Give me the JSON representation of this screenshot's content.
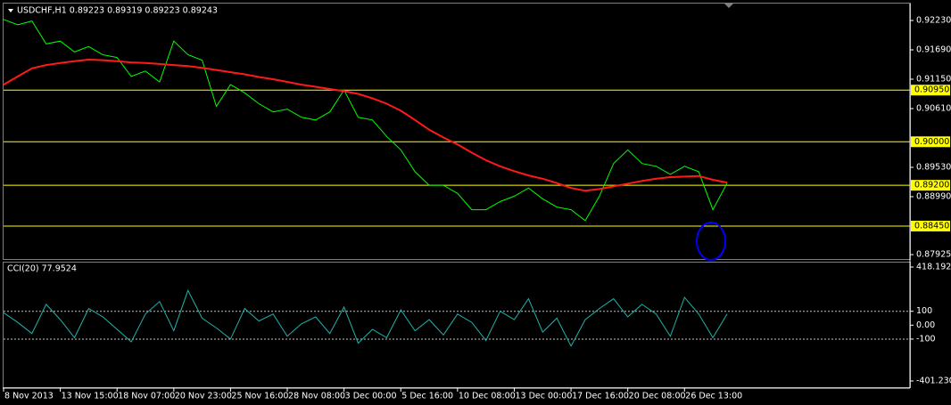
{
  "chart_data": [
    {
      "type": "line",
      "title": "USDCHF,H1  0.89223 0.89319 0.89223 0.89243",
      "categories": [
        "8 Nov 2013",
        null,
        null,
        null,
        "13 Nov 15:00",
        null,
        null,
        null,
        "18 Nov 07:00",
        null,
        null,
        null,
        "20 Nov 23:00",
        null,
        null,
        null,
        "25 Nov 16:00",
        null,
        null,
        null,
        "28 Nov 08:00",
        null,
        null,
        null,
        "3 Dec 00:00",
        null,
        null,
        null,
        "5 Dec 16:00",
        null,
        null,
        null,
        "10 Dec 08:00",
        null,
        null,
        null,
        "13 Dec 00:00",
        null,
        null,
        null,
        "17 Dec 16:00",
        null,
        null,
        null,
        "20 Dec 08:00",
        null,
        null,
        null,
        "26 Dec 13:00",
        null,
        null,
        null
      ],
      "series": [
        {
          "color": "#00ff00",
          "values": [
            0.9225,
            0.9215,
            0.9222,
            0.918,
            0.9185,
            0.9165,
            0.9175,
            0.916,
            0.9155,
            0.912,
            0.913,
            0.911,
            0.9185,
            0.916,
            0.915,
            0.9065,
            0.9105,
            0.909,
            0.907,
            0.9055,
            0.906,
            0.9045,
            0.904,
            0.9055,
            0.9095,
            0.9045,
            0.904,
            0.901,
            0.8985,
            0.8945,
            0.892,
            0.892,
            0.8905,
            0.8875,
            0.8875,
            0.889,
            0.89,
            0.8915,
            0.8895,
            0.888,
            0.8875,
            0.8855,
            0.89,
            0.896,
            0.8985,
            0.896,
            0.8955,
            0.894,
            0.8955,
            0.8945,
            0.8875,
            0.8924
          ]
        },
        {
          "color": "#ff1a1a",
          "values": [
            0.9105,
            0.912,
            0.9135,
            0.9141,
            0.9145,
            0.9148,
            0.9151,
            0.915,
            0.9148,
            0.9146,
            0.9145,
            0.9143,
            0.9141,
            0.9139,
            0.9136,
            0.9132,
            0.9128,
            0.9124,
            0.9119,
            0.9115,
            0.911,
            0.9105,
            0.9101,
            0.9097,
            0.9093,
            0.9088,
            0.908,
            0.907,
            0.9057,
            0.904,
            0.9022,
            0.9008,
            0.8995,
            0.898,
            0.8966,
            0.8955,
            0.8946,
            0.8938,
            0.8932,
            0.8924,
            0.8915,
            0.891,
            0.8913,
            0.8918,
            0.8923,
            0.8928,
            0.8932,
            0.8935,
            0.8936,
            0.8937,
            0.893,
            0.8925
          ]
        }
      ],
      "ylim": [
        0.87844,
        0.92541
      ],
      "yticks": [
        {
          "value": 0.9223,
          "label": "0.92230"
        },
        {
          "value": 0.9169,
          "label": "0.91690"
        },
        {
          "value": 0.9115,
          "label": "0.91150"
        },
        {
          "value": 0.9061,
          "label": "0.90610"
        },
        {
          "value": 0.8953,
          "label": "0.89530"
        },
        {
          "value": 0.8899,
          "label": "0.88990"
        },
        {
          "value": 0.87925,
          "label": "0.87925"
        }
      ],
      "levels": [
        {
          "value": 0.9095,
          "label": "0.90950"
        },
        {
          "value": 0.9,
          "label": "0.90000"
        },
        {
          "value": 0.892,
          "label": "0.89200"
        },
        {
          "value": 0.8845,
          "label": "0.88450"
        }
      ],
      "level_color": "#ffff00"
    },
    {
      "type": "line",
      "title": "CCI(20) 77.9524",
      "series": [
        {
          "color": "#20b2aa",
          "values": [
            90,
            20,
            -60,
            150,
            40,
            -90,
            120,
            60,
            -30,
            -120,
            80,
            170,
            -40,
            250,
            50,
            -20,
            -100,
            120,
            30,
            80,
            -80,
            10,
            60,
            -60,
            130,
            -130,
            -30,
            -90,
            110,
            -40,
            40,
            -70,
            80,
            20,
            -110,
            100,
            40,
            190,
            -50,
            50,
            -150,
            40,
            120,
            190,
            60,
            150,
            80,
            -80,
            200,
            80,
            -90,
            80
          ]
        }
      ],
      "ylim": [
        -401.2303,
        418.192
      ],
      "yticks": [
        418.192,
        100,
        {
          "value": 0,
          "label": "0.00"
        },
        -100,
        -401.2303
      ],
      "levels": [
        100,
        -100
      ]
    }
  ]
}
